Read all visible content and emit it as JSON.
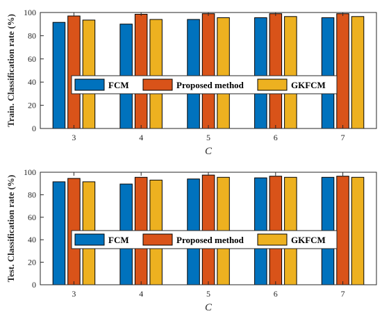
{
  "chart_data": [
    {
      "type": "bar",
      "categories": [
        "3",
        "4",
        "5",
        "6",
        "7"
      ],
      "series": [
        {
          "name": "FCM",
          "values": [
            91.5,
            90.0,
            94.0,
            95.5,
            95.5
          ]
        },
        {
          "name": "Proposed method",
          "values": [
            97.0,
            98.5,
            99.0,
            99.0,
            99.0
          ]
        },
        {
          "name": "GKFCM",
          "values": [
            93.5,
            94.0,
            95.5,
            96.5,
            96.5
          ]
        }
      ],
      "xlabel": "C",
      "ylabel": "Train. Classification rate (%)",
      "ylim": [
        0,
        100
      ],
      "yticks": [
        "0",
        "20",
        "40",
        "60",
        "80",
        "100"
      ],
      "grid": false,
      "legend": "center, horizontal"
    },
    {
      "type": "bar",
      "categories": [
        "3",
        "4",
        "5",
        "6",
        "7"
      ],
      "series": [
        {
          "name": "FCM",
          "values": [
            91.5,
            89.5,
            94.0,
            95.0,
            95.5
          ]
        },
        {
          "name": "Proposed method",
          "values": [
            94.5,
            95.5,
            97.5,
            96.5,
            96.5
          ]
        },
        {
          "name": "GKFCM",
          "values": [
            91.5,
            93.0,
            95.5,
            95.5,
            95.5
          ]
        }
      ],
      "xlabel": "C",
      "ylabel": "Test. Classification rate (%)",
      "ylim": [
        0,
        100
      ],
      "yticks": [
        "0",
        "20",
        "40",
        "60",
        "80",
        "100"
      ],
      "grid": false,
      "legend": "center, horizontal"
    }
  ],
  "colors": {
    "FCM": "#0072BD",
    "Proposed method": "#D95319",
    "GKFCM": "#EDB120",
    "axis": "#262626"
  }
}
